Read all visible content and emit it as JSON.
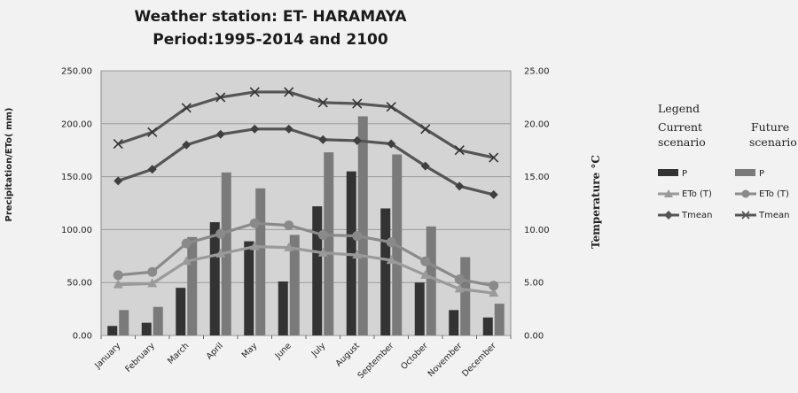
{
  "chart_data": {
    "type": "bar+line",
    "title_line1": "Weather station: ET- HARAMAYA",
    "title_line2": "Period:1995-2014 and 2100",
    "ylabel_left": "Precipitation/ETo( mm)",
    "ylabel_right": "Temperature °C",
    "ylim_left": [
      0,
      250
    ],
    "ylim_right": [
      0,
      25
    ],
    "yticks_left": [
      "0.00",
      "50.00",
      "100.00",
      "150.00",
      "200.00",
      "250.00"
    ],
    "yticks_right": [
      "0.00",
      "5.00",
      "10.00",
      "15.00",
      "20.00",
      "25.00"
    ],
    "categories": [
      "January",
      "February",
      "March",
      "April",
      "May",
      "June",
      "July",
      "August",
      "September",
      "October",
      "November",
      "December"
    ],
    "series": [
      {
        "name": "P",
        "scenario": "current",
        "kind": "bar",
        "axis": "left",
        "color": "#333333",
        "values": [
          9,
          12,
          45,
          107,
          89,
          51,
          122,
          155,
          120,
          50,
          24,
          17
        ]
      },
      {
        "name": "P",
        "scenario": "future",
        "kind": "bar",
        "axis": "left",
        "color": "#7a7a7a",
        "values": [
          24,
          27,
          93,
          154,
          139,
          95,
          173,
          207,
          171,
          103,
          74,
          30
        ]
      },
      {
        "name": "ETo (T)",
        "scenario": "current",
        "kind": "line",
        "marker": "triangle",
        "axis": "left",
        "color": "#9a9a9a",
        "values": [
          48,
          49,
          70,
          77,
          84,
          83,
          78,
          76,
          71,
          57,
          44,
          40
        ]
      },
      {
        "name": "ETo (T)",
        "scenario": "future",
        "kind": "line",
        "marker": "circle",
        "axis": "left",
        "color": "#8a8a8a",
        "values": [
          57,
          60,
          87,
          96,
          106,
          104,
          95,
          94,
          88,
          70,
          53,
          47
        ]
      },
      {
        "name": "Tmean",
        "scenario": "current",
        "kind": "line",
        "marker": "diamond",
        "axis": "right",
        "color": "#555555",
        "values": [
          14.6,
          15.7,
          18.0,
          19.0,
          19.5,
          19.5,
          18.5,
          18.4,
          18.1,
          16.0,
          14.1,
          13.3
        ]
      },
      {
        "name": "Tmean",
        "scenario": "future",
        "kind": "line",
        "marker": "x",
        "axis": "right",
        "color": "#555555",
        "values": [
          18.1,
          19.2,
          21.5,
          22.5,
          23.0,
          23.0,
          22.0,
          21.9,
          21.6,
          19.5,
          17.5,
          16.8
        ]
      }
    ],
    "legend": {
      "title": "Legend",
      "current_label_1": "Current",
      "current_label_2": "scenario",
      "future_label_1": "Future",
      "future_label_2": "scenario",
      "item_p": "P",
      "item_eto": "ETo (T)",
      "item_tmean": "Tmean",
      "placement": "right"
    }
  }
}
